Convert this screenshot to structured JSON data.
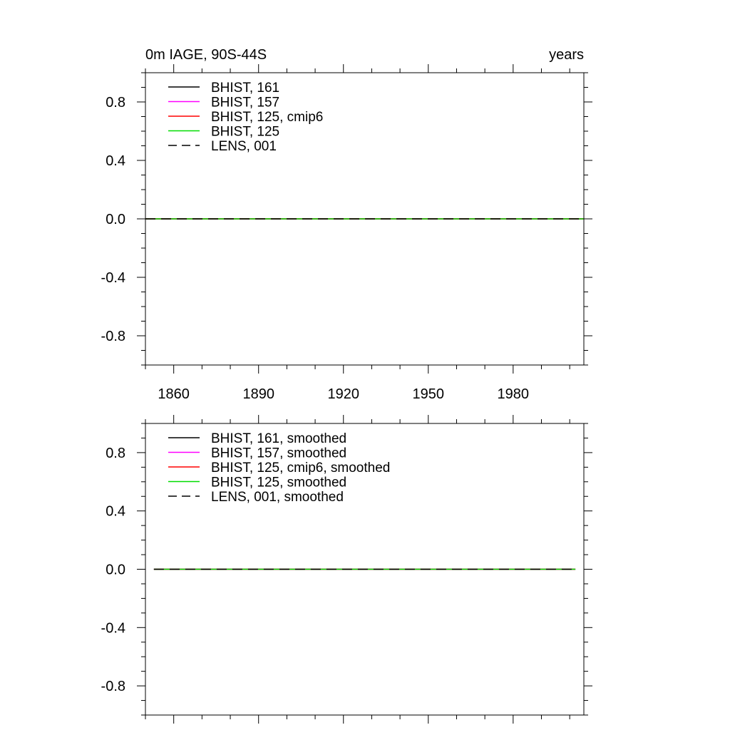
{
  "chart_data": [
    {
      "type": "line",
      "title": "0m IAGE, 90S-44S",
      "units": "years",
      "xlim": [
        1850,
        2005
      ],
      "ylim": [
        -1.0,
        1.0
      ],
      "yticks": [
        -0.8,
        -0.4,
        0.0,
        0.4,
        0.8
      ],
      "yticklabels": [
        "-0.8",
        "-0.4",
        "0.0",
        "0.4",
        "0.8"
      ],
      "xticks": [
        1860,
        1890,
        1920,
        1950,
        1980
      ],
      "xticklabels": [
        "1860",
        "1890",
        "1920",
        "1950",
        "1980"
      ],
      "legend": "top-left",
      "series": [
        {
          "name": "BHIST, 161",
          "color": "#000000",
          "dash": "solid",
          "x": [
            1850,
            2005
          ],
          "values": [
            0.0,
            0.0
          ]
        },
        {
          "name": "BHIST, 157",
          "color": "#ff00ff",
          "dash": "solid",
          "x": [
            1850,
            2005
          ],
          "values": [
            0.0,
            0.0
          ]
        },
        {
          "name": "BHIST, 125, cmip6",
          "color": "#ff0000",
          "dash": "solid",
          "x": [
            1850,
            2005
          ],
          "values": [
            0.0,
            0.0
          ]
        },
        {
          "name": "BHIST, 125",
          "color": "#00dd00",
          "dash": "solid",
          "x": [
            1850,
            2005
          ],
          "values": [
            0.0,
            0.0
          ]
        },
        {
          "name": "LENS, 001",
          "color": "#000000",
          "dash": "dashed",
          "x": [
            1850,
            2005
          ],
          "values": [
            0.0,
            0.0
          ]
        }
      ]
    },
    {
      "type": "line",
      "xlim": [
        1850,
        2005
      ],
      "ylim": [
        -1.0,
        1.0
      ],
      "yticks": [
        -0.8,
        -0.4,
        0.0,
        0.4,
        0.8
      ],
      "yticklabels": [
        "-0.8",
        "-0.4",
        "0.0",
        "0.4",
        "0.8"
      ],
      "xticks": [
        1860,
        1890,
        1920,
        1950,
        1980
      ],
      "legend": "top-left",
      "series": [
        {
          "name": "BHIST, 161, smoothed",
          "color": "#000000",
          "dash": "solid",
          "x": [
            1853,
            2002
          ],
          "values": [
            0.0,
            0.0
          ]
        },
        {
          "name": "BHIST, 157, smoothed",
          "color": "#ff00ff",
          "dash": "solid",
          "x": [
            1853,
            2002
          ],
          "values": [
            0.0,
            0.0
          ]
        },
        {
          "name": "BHIST, 125, cmip6, smoothed",
          "color": "#ff0000",
          "dash": "solid",
          "x": [
            1853,
            2002
          ],
          "values": [
            0.0,
            0.0
          ]
        },
        {
          "name": "BHIST, 125, smoothed",
          "color": "#00dd00",
          "dash": "solid",
          "x": [
            1853,
            2002
          ],
          "values": [
            0.0,
            0.0
          ]
        },
        {
          "name": "LENS, 001, smoothed",
          "color": "#000000",
          "dash": "dashed",
          "x": [
            1853,
            2002
          ],
          "values": [
            0.0,
            0.0
          ]
        }
      ]
    }
  ]
}
